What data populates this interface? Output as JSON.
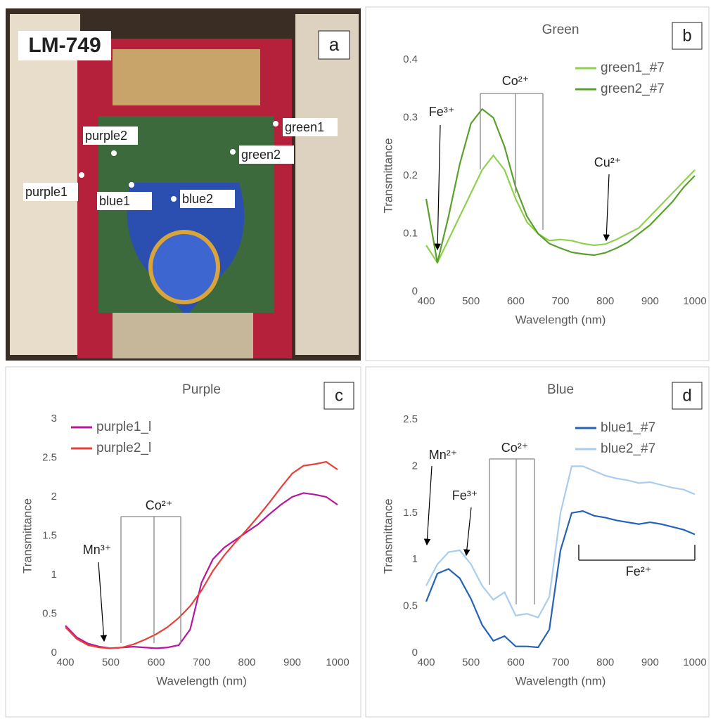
{
  "photo": {
    "labels": {
      "id": "LM-749",
      "panel": "a",
      "points": [
        "purple2",
        "purple1",
        "blue1",
        "blue2",
        "green1",
        "green2"
      ]
    }
  },
  "chart_data": [
    {
      "type": "line",
      "title": "Green",
      "panel": "b",
      "xlabel": "Wavelength (nm)",
      "ylabel": "Transmittance",
      "x": [
        400,
        425,
        450,
        475,
        500,
        525,
        550,
        575,
        600,
        625,
        650,
        675,
        700,
        725,
        750,
        775,
        800,
        825,
        850,
        875,
        900,
        925,
        950,
        975,
        1000
      ],
      "series": [
        {
          "name": "green1_#7",
          "color": "#8fd14f",
          "values": [
            0.08,
            0.05,
            0.09,
            0.13,
            0.17,
            0.21,
            0.235,
            0.21,
            0.16,
            0.12,
            0.1,
            0.088,
            0.09,
            0.088,
            0.083,
            0.08,
            0.082,
            0.09,
            0.1,
            0.11,
            0.13,
            0.15,
            0.17,
            0.19,
            0.21
          ]
        },
        {
          "name": "green2_#7",
          "color": "#5aa02c",
          "values": [
            0.16,
            0.05,
            0.13,
            0.22,
            0.29,
            0.315,
            0.3,
            0.25,
            0.18,
            0.13,
            0.1,
            0.083,
            0.075,
            0.068,
            0.065,
            0.063,
            0.067,
            0.075,
            0.085,
            0.1,
            0.115,
            0.135,
            0.155,
            0.18,
            0.2
          ]
        }
      ],
      "xlim": [
        400,
        1000
      ],
      "xticks": [
        400,
        500,
        600,
        700,
        800,
        900,
        1000
      ],
      "ylim": [
        0,
        0.4
      ],
      "yticks": [
        0,
        0.1,
        0.2,
        0.3,
        0.4
      ],
      "grid": false,
      "legend": "top-right",
      "annotations": [
        "Fe³⁺",
        "Co²⁺",
        "Cu²⁺"
      ]
    },
    {
      "type": "line",
      "title": "Purple",
      "panel": "c",
      "xlabel": "Wavelength (nm)",
      "ylabel": "Transmittance",
      "x": [
        400,
        425,
        450,
        475,
        500,
        525,
        550,
        575,
        600,
        625,
        650,
        675,
        700,
        725,
        750,
        775,
        800,
        825,
        850,
        875,
        900,
        925,
        950,
        975,
        1000
      ],
      "series": [
        {
          "name": "purple1_l",
          "color": "#b5179e",
          "values": [
            0.35,
            0.2,
            0.12,
            0.08,
            0.06,
            0.07,
            0.08,
            0.07,
            0.06,
            0.07,
            0.1,
            0.3,
            0.9,
            1.2,
            1.35,
            1.45,
            1.55,
            1.65,
            1.78,
            1.9,
            2.0,
            2.05,
            2.03,
            2.0,
            1.9
          ]
        },
        {
          "name": "purple2_l",
          "color": "#e8403a",
          "values": [
            0.33,
            0.18,
            0.1,
            0.07,
            0.06,
            0.07,
            0.11,
            0.17,
            0.24,
            0.33,
            0.45,
            0.6,
            0.8,
            1.05,
            1.25,
            1.42,
            1.58,
            1.75,
            1.93,
            2.12,
            2.3,
            2.4,
            2.42,
            2.45,
            2.35
          ]
        }
      ],
      "xlim": [
        400,
        1000
      ],
      "xticks": [
        400,
        500,
        600,
        700,
        800,
        900,
        1000
      ],
      "ylim": [
        0,
        3
      ],
      "yticks": [
        0,
        0.5,
        1,
        1.5,
        2,
        2.5,
        3
      ],
      "grid": false,
      "legend": "top-left",
      "annotations": [
        "Co²⁺",
        "Mn³⁺"
      ]
    },
    {
      "type": "line",
      "title": "Blue",
      "panel": "d",
      "xlabel": "Wavelength (nm)",
      "ylabel": "Transmittance",
      "x": [
        400,
        425,
        450,
        475,
        500,
        525,
        550,
        575,
        600,
        625,
        650,
        675,
        700,
        725,
        750,
        775,
        800,
        825,
        850,
        875,
        900,
        925,
        950,
        975,
        1000
      ],
      "series": [
        {
          "name": "blue1_#7",
          "color": "#2563b8",
          "values": [
            0.55,
            0.85,
            0.9,
            0.8,
            0.58,
            0.3,
            0.13,
            0.18,
            0.07,
            0.07,
            0.06,
            0.25,
            1.1,
            1.5,
            1.52,
            1.47,
            1.45,
            1.42,
            1.4,
            1.38,
            1.4,
            1.38,
            1.35,
            1.32,
            1.27
          ]
        },
        {
          "name": "blue2_#7",
          "color": "#a9cdef",
          "values": [
            0.72,
            0.95,
            1.08,
            1.1,
            0.95,
            0.72,
            0.57,
            0.65,
            0.4,
            0.42,
            0.38,
            0.6,
            1.5,
            2.0,
            2.0,
            1.95,
            1.9,
            1.87,
            1.85,
            1.82,
            1.83,
            1.8,
            1.77,
            1.75,
            1.7
          ]
        }
      ],
      "xlim": [
        400,
        1000
      ],
      "xticks": [
        400,
        500,
        600,
        700,
        800,
        900,
        1000
      ],
      "ylim": [
        0,
        2.5
      ],
      "yticks": [
        0,
        0.5,
        1,
        1.5,
        2,
        2.5
      ],
      "grid": false,
      "legend": "top-right",
      "annotations": [
        "Mn²⁺",
        "Fe³⁺",
        "Co²⁺",
        "Fe²⁺"
      ]
    }
  ]
}
